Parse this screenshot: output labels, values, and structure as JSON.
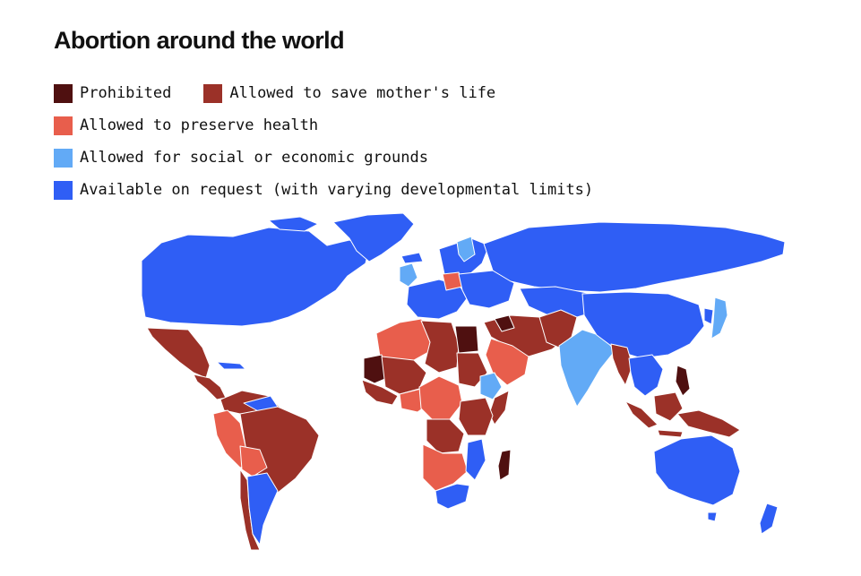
{
  "title": "Abortion around the world",
  "legend": [
    {
      "key": "prohibited",
      "label": "Prohibited",
      "color": "#4f1010"
    },
    {
      "key": "save_life",
      "label": "Allowed to save mother's life",
      "color": "#9b3128"
    },
    {
      "key": "preserve_health",
      "label": "Allowed to preserve health",
      "color": "#e85e4c"
    },
    {
      "key": "social_economic",
      "label": "Allowed for social or economic grounds",
      "color": "#62aaf6"
    },
    {
      "key": "on_request",
      "label": "Available on request (with varying developmental limits)",
      "color": "#2f5ef5"
    }
  ],
  "map": {
    "type": "choropleth",
    "region": "world",
    "border_color": "#ffffff"
  }
}
